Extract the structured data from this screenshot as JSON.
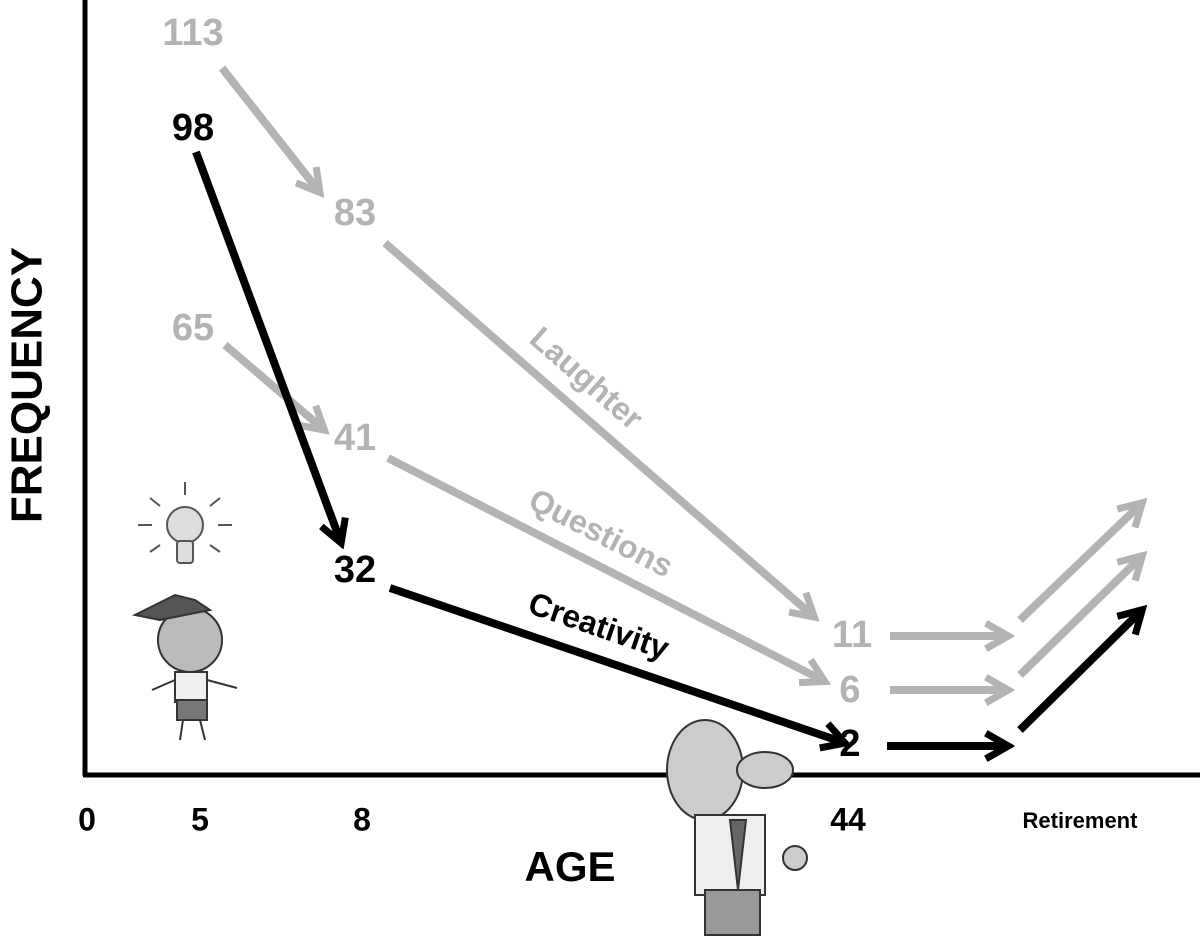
{
  "axes": {
    "y_label": "FREQUENCY",
    "x_label": "AGE",
    "x_ticks": [
      "0",
      "5",
      "8",
      "44",
      "Retirement"
    ]
  },
  "series": [
    {
      "name": "Laughter",
      "points": [
        "113",
        "83",
        "11"
      ]
    },
    {
      "name": "Questions",
      "points": [
        "65",
        "41",
        "6"
      ]
    },
    {
      "name": "Creativity",
      "points": [
        "98",
        "32",
        "2"
      ]
    }
  ]
}
